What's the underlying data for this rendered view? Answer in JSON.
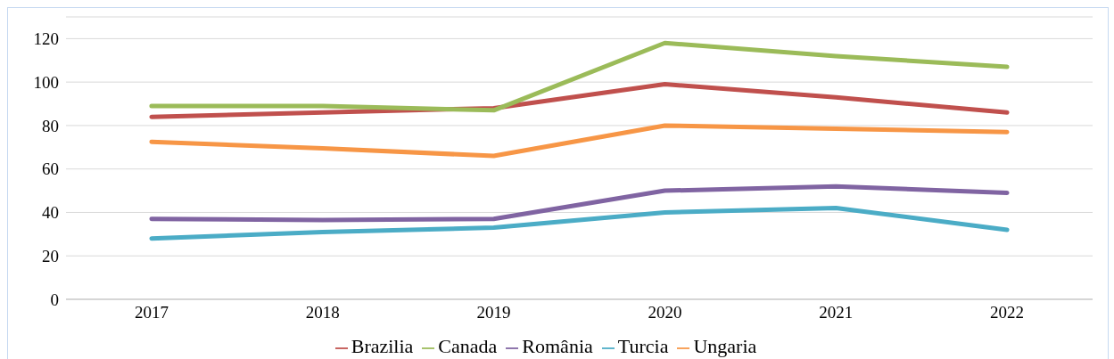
{
  "chart_data": {
    "type": "line",
    "categories": [
      "2017",
      "2018",
      "2019",
      "2020",
      "2021",
      "2022"
    ],
    "series": [
      {
        "name": "Brazilia",
        "color": "#c0504d",
        "values": [
          84,
          86,
          88,
          99,
          93,
          86
        ]
      },
      {
        "name": "Canada",
        "color": "#9bbb59",
        "values": [
          89,
          89,
          87,
          118,
          112,
          107
        ]
      },
      {
        "name": "România",
        "color": "#8064a2",
        "values": [
          37,
          36.5,
          37,
          50,
          52,
          49
        ]
      },
      {
        "name": "Turcia",
        "color": "#4bacc6",
        "values": [
          28,
          31,
          33,
          40,
          42,
          32
        ]
      },
      {
        "name": "Ungaria",
        "color": "#f79646",
        "values": [
          72.5,
          69.5,
          66,
          80,
          78.5,
          77
        ]
      }
    ],
    "ylim": [
      0,
      130
    ],
    "yticks": [
      0,
      20,
      40,
      60,
      80,
      100,
      120
    ],
    "grid": "y",
    "legend": "bottom",
    "marker": "none",
    "line_style": "solid"
  }
}
